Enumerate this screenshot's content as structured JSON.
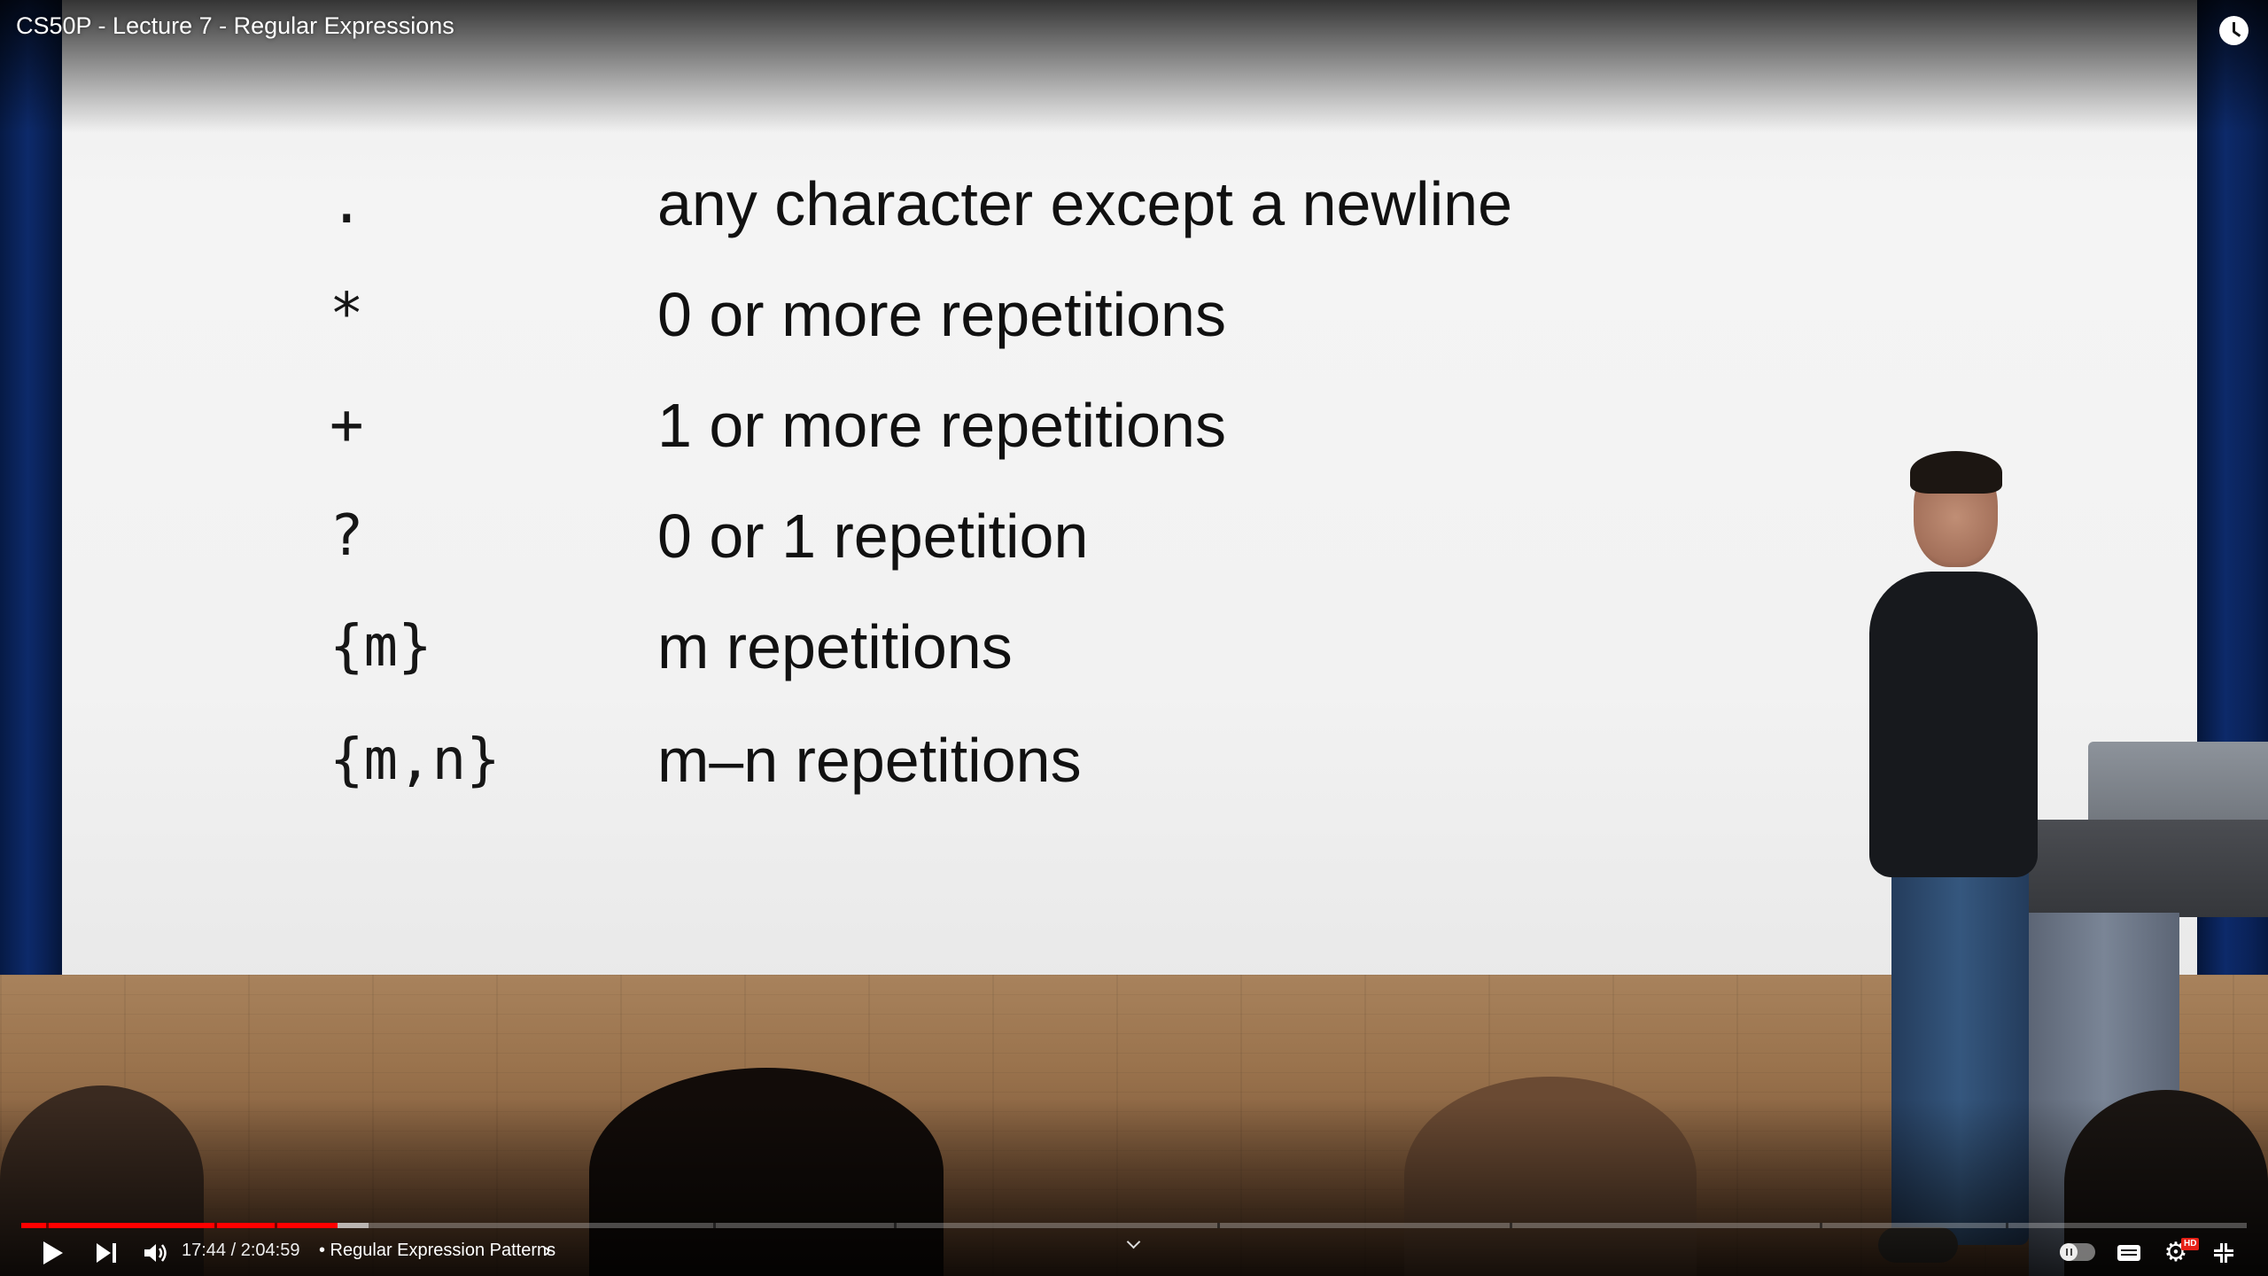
{
  "header": {
    "video_title": "CS50P - Lecture 7 - Regular Expressions",
    "watch_later_icon": "clock-icon"
  },
  "slide": {
    "rows": [
      {
        "symbol": ".",
        "description": "any character except a newline"
      },
      {
        "symbol": "*",
        "description": "0 or more repetitions"
      },
      {
        "symbol": "+",
        "description": "1 or more repetitions"
      },
      {
        "symbol": "?",
        "description": "0 or 1 repetition"
      },
      {
        "symbol": "{m}",
        "description": "m repetitions"
      },
      {
        "symbol": "{m,n}",
        "description": "m–n repetitions"
      }
    ]
  },
  "player": {
    "time_display": "17:44 / 2:04:59",
    "chapter_label": "• Regular Expression Patterns",
    "chapter_chevron": "›",
    "progress_played_fraction": 0.142,
    "progress_buffered_fraction": 0.156,
    "settings_glyph": "⚙",
    "hd_badge": "HD",
    "accent_color": "#ff0000",
    "icons": {
      "play": "play-icon",
      "next": "next-icon",
      "volume": "volume-icon",
      "autoplay": "autoplay-toggle-icon",
      "captions": "captions-icon",
      "settings": "gear-icon",
      "fullscreen": "exit-fullscreen-icon"
    }
  }
}
